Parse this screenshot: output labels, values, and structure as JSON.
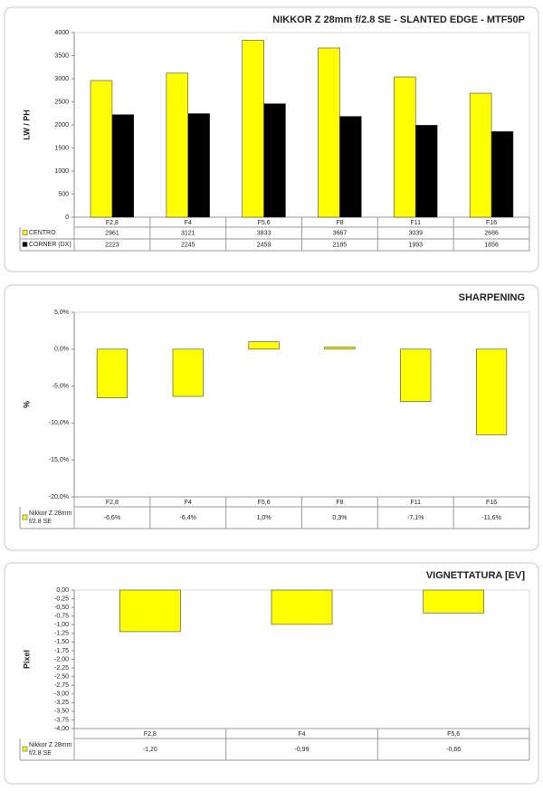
{
  "chart_data": [
    {
      "type": "bar",
      "title": "NIKKOR Z 28mm f/2.8 SE - SLANTED EDGE - MTF50P",
      "y_label": "LW / PH",
      "categories": [
        "F2,8",
        "F4",
        "F5,6",
        "F8",
        "F11",
        "F16"
      ],
      "series": [
        {
          "name": "CENTRO",
          "color": "#ffff00",
          "values": [
            2961,
            3121,
            3833,
            3667,
            3039,
            2686
          ]
        },
        {
          "name": "CORNER (DX)",
          "color": "#000000",
          "values": [
            2223,
            2245,
            2459,
            2185,
            1993,
            1856
          ]
        }
      ],
      "ylim": [
        0,
        4000
      ],
      "yticks": [
        0,
        500,
        1000,
        1500,
        2000,
        2500,
        3000,
        3500,
        4000
      ],
      "grid": false
    },
    {
      "type": "bar",
      "title": "SHARPENING",
      "y_label": "%",
      "categories": [
        "F2,8",
        "F4",
        "F5,6",
        "F8",
        "F11",
        "F16"
      ],
      "series": [
        {
          "name": "Nikkor Z 28mm f/2.8 SE",
          "color": "#ffff00",
          "values": [
            -6.6,
            -6.4,
            1.0,
            0.3,
            -7.1,
            -11.6
          ],
          "value_labels": [
            "-6,6%",
            "-6,4%",
            "1,0%",
            "0,3%",
            "-7,1%",
            "-11,6%"
          ]
        }
      ],
      "ylim": [
        -20,
        5
      ],
      "yticks": [
        {
          "value": -20,
          "label": "-20,0%"
        },
        {
          "value": -15,
          "label": "-15,0%"
        },
        {
          "value": -10,
          "label": "-10,0%"
        },
        {
          "value": -5,
          "label": "-5,0%"
        },
        {
          "value": 0,
          "label": "0,0%"
        },
        {
          "value": 5,
          "label": "5,0%"
        }
      ],
      "grid": false
    },
    {
      "type": "bar",
      "title": "VIGNETTATURA [EV]",
      "y_label": "Pixel",
      "categories": [
        "F2,8",
        "F4",
        "F5,6"
      ],
      "series": [
        {
          "name": "Nikkor Z 28mm f/2.8 SE",
          "color": "#ffff00",
          "values": [
            -1.2,
            -0.99,
            -0.66
          ],
          "value_labels": [
            "-1,20",
            "-0,99",
            "-0,66"
          ]
        }
      ],
      "ylim": [
        -4,
        0
      ],
      "yticks": [
        {
          "value": -4,
          "label": "-4,00"
        },
        {
          "value": -3.75,
          "label": "-3,75"
        },
        {
          "value": -3.5,
          "label": "-3,50"
        },
        {
          "value": -3.25,
          "label": "-3,25"
        },
        {
          "value": -3,
          "label": "-3,00"
        },
        {
          "value": -2.75,
          "label": "-2,75"
        },
        {
          "value": -2.5,
          "label": "-2,50"
        },
        {
          "value": -2.25,
          "label": "-2,25"
        },
        {
          "value": -2,
          "label": "-2,00"
        },
        {
          "value": -1.75,
          "label": "-1,75"
        },
        {
          "value": -1.5,
          "label": "-1,50"
        },
        {
          "value": -1.25,
          "label": "-1,25"
        },
        {
          "value": -1,
          "label": "-1,00"
        },
        {
          "value": -0.75,
          "label": "-0,75"
        },
        {
          "value": -0.5,
          "label": "-0,50"
        },
        {
          "value": -0.25,
          "label": "-0,25"
        },
        {
          "value": 0,
          "label": "0,00"
        }
      ],
      "grid": false
    }
  ]
}
